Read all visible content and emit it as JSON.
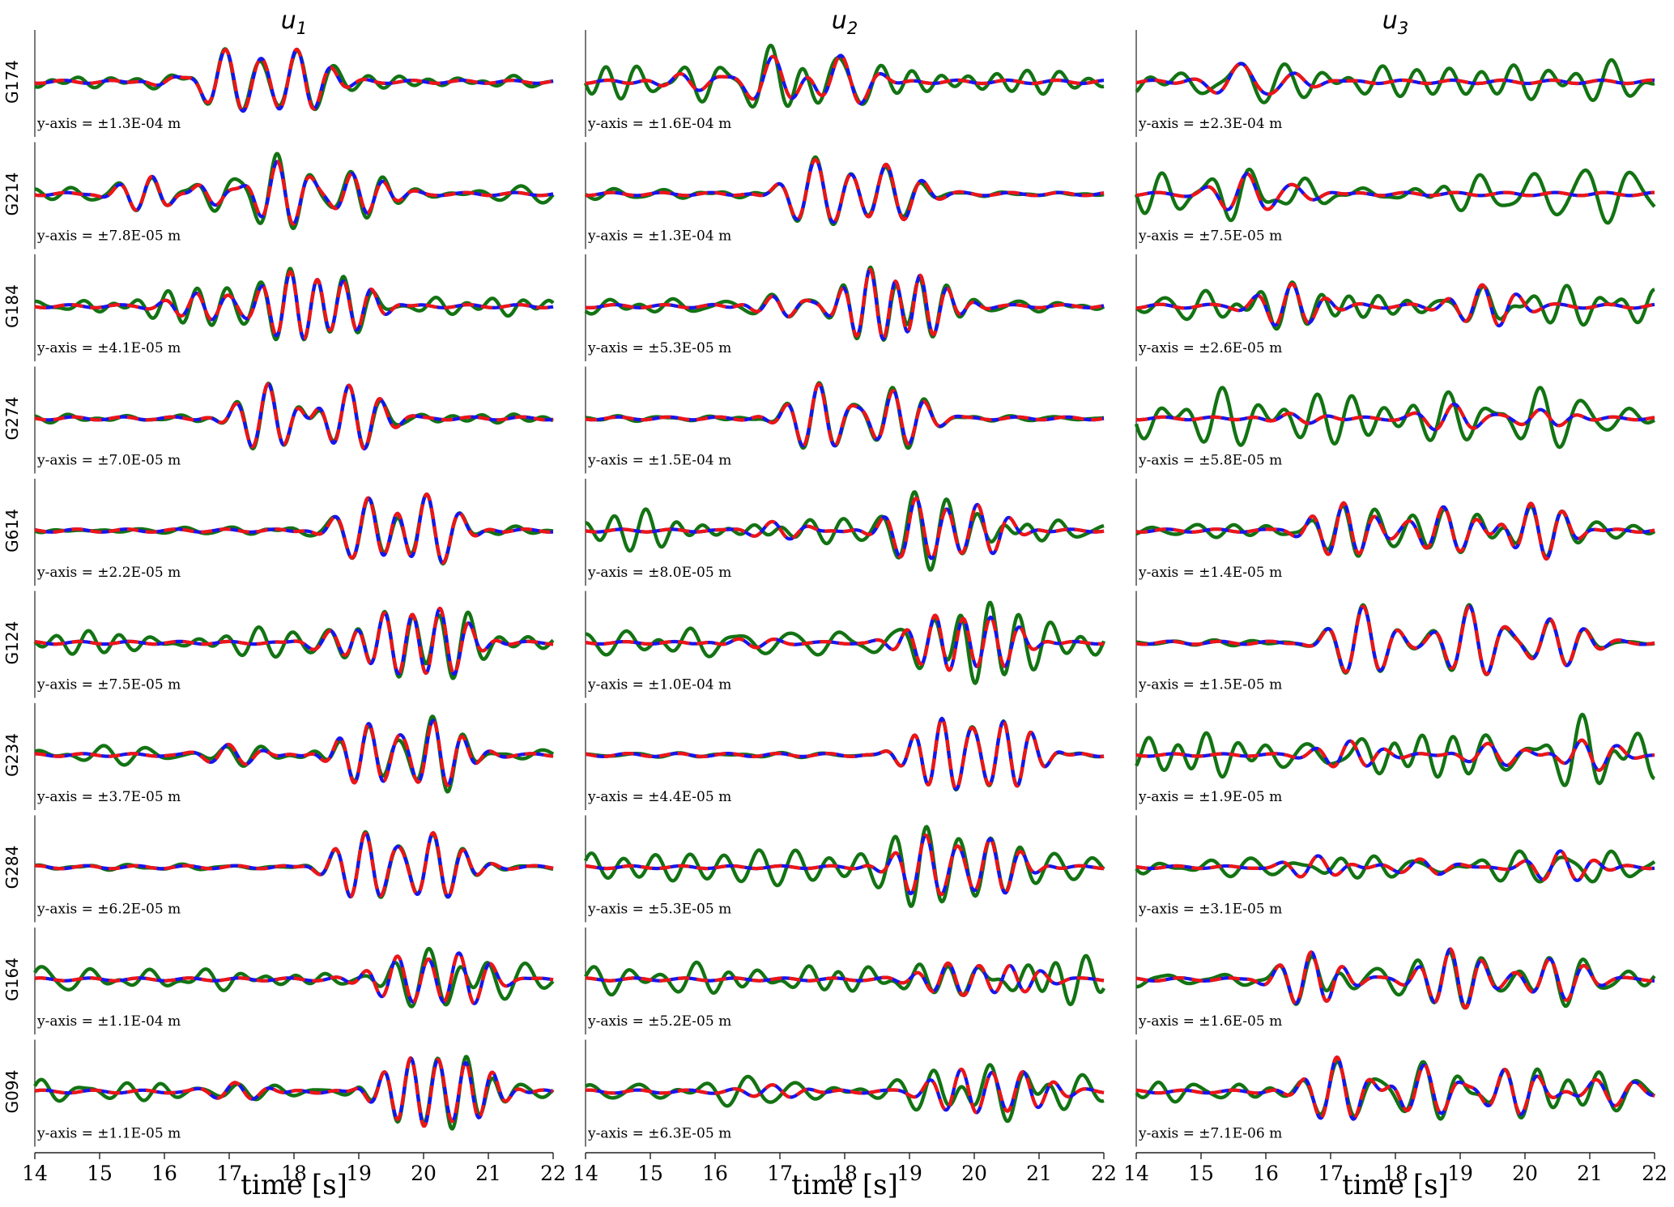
{
  "chart_data": {
    "type": "line",
    "columns": [
      {
        "title_base": "u",
        "title_sub": "1"
      },
      {
        "title_base": "u",
        "title_sub": "2"
      },
      {
        "title_base": "u",
        "title_sub": "3"
      }
    ],
    "stations": [
      "G174",
      "G214",
      "G184",
      "G274",
      "G614",
      "G124",
      "G234",
      "G284",
      "G164",
      "G094"
    ],
    "scale_labels": [
      [
        "y-axis = ±1.3E-04 m",
        "y-axis = ±1.6E-04 m",
        "y-axis = ±2.3E-04 m"
      ],
      [
        "y-axis = ±7.8E-05 m",
        "y-axis = ±1.3E-04 m",
        "y-axis = ±7.5E-05 m"
      ],
      [
        "y-axis = ±4.1E-05 m",
        "y-axis = ±5.3E-05 m",
        "y-axis = ±2.6E-05 m"
      ],
      [
        "y-axis = ±7.0E-05 m",
        "y-axis = ±1.5E-04 m",
        "y-axis = ±5.8E-05 m"
      ],
      [
        "y-axis = ±2.2E-05 m",
        "y-axis = ±8.0E-05 m",
        "y-axis = ±1.4E-05 m"
      ],
      [
        "y-axis = ±7.5E-05 m",
        "y-axis = ±1.0E-04 m",
        "y-axis = ±1.5E-05 m"
      ],
      [
        "y-axis = ±3.7E-05 m",
        "y-axis = ±4.4E-05 m",
        "y-axis = ±1.9E-05 m"
      ],
      [
        "y-axis = ±6.2E-05 m",
        "y-axis = ±5.3E-05 m",
        "y-axis = ±3.1E-05 m"
      ],
      [
        "y-axis = ±1.1E-04 m",
        "y-axis = ±5.2E-05 m",
        "y-axis = ±1.6E-05 m"
      ],
      [
        "y-axis = ±1.1E-05 m",
        "y-axis = ±6.3E-05 m",
        "y-axis = ±7.1E-06 m"
      ]
    ],
    "xlabel": "time [s]",
    "xlim": [
      14,
      22
    ],
    "xticks": [
      14,
      15,
      16,
      17,
      18,
      19,
      20,
      21,
      22
    ],
    "ylim": [
      -1,
      1
    ],
    "series_colors": {
      "observed": "#137313",
      "predicted_a": "#1515ee",
      "predicted_b": "#ee1515"
    },
    "series_style": {
      "predicted_b": "dashed"
    },
    "traces": {
      "0": {
        "u1": {
          "a": 0.8,
          "b": [
            [
              16.95,
              0.9,
              1.8
            ],
            [
              18.1,
              0.9,
              1.8
            ],
            [
              16.3,
              0.25,
              1.7
            ]
          ],
          "n": 0.25
        },
        "u2": {
          "a": 0.65,
          "b": [
            [
              16.9,
              0.65,
              1.5
            ],
            [
              18.0,
              0.7,
              1.5
            ],
            [
              15.6,
              0.25,
              1.6
            ]
          ],
          "n": 0.55
        },
        "u3": {
          "a": 0.45,
          "b": [
            [
              15.6,
              0.45,
              1.2
            ],
            [
              16.5,
              0.15,
              1.6
            ]
          ],
          "n": 0.7
        }
      },
      "1": {
        "u1": {
          "a": 0.8,
          "b": [
            [
              15.8,
              0.5,
              2.0
            ],
            [
              17.8,
              0.9,
              2.0
            ],
            [
              19.0,
              0.6,
              2.0
            ],
            [
              16.7,
              0.4,
              1.8
            ]
          ],
          "n": 0.35
        },
        "u2": {
          "a": 0.85,
          "b": [
            [
              17.55,
              0.9,
              1.7
            ],
            [
              18.7,
              0.85,
              1.7
            ]
          ],
          "n": 0.15
        },
        "u3": {
          "a": 0.5,
          "b": [
            [
              15.7,
              0.5,
              1.6
            ],
            [
              16.5,
              0.2,
              1.6
            ]
          ],
          "n": 1.0
        }
      },
      "2": {
        "u1": {
          "a": 0.85,
          "b": [
            [
              17.95,
              0.95,
              2.2
            ],
            [
              18.8,
              0.7,
              2.2
            ],
            [
              16.6,
              0.4,
              2.0
            ]
          ],
          "n": 0.35
        },
        "u2": {
          "a": 0.9,
          "b": [
            [
              18.4,
              0.95,
              2.3
            ],
            [
              19.2,
              0.8,
              2.3
            ],
            [
              17.0,
              0.25,
              2.0
            ]
          ],
          "n": 0.25
        },
        "u3": {
          "a": 0.55,
          "b": [
            [
              16.4,
              0.5,
              1.8
            ],
            [
              19.4,
              0.5,
              1.8
            ]
          ],
          "n": 0.65
        }
      },
      "3": {
        "u1": {
          "a": 0.85,
          "b": [
            [
              17.6,
              0.9,
              2.0
            ],
            [
              18.9,
              0.95,
              2.0
            ]
          ],
          "n": 0.15
        },
        "u2": {
          "a": 0.85,
          "b": [
            [
              17.6,
              0.95,
              2.0
            ],
            [
              18.8,
              0.85,
              2.0
            ]
          ],
          "n": 0.15
        },
        "u3": {
          "a": 0.35,
          "b": [
            [
              18.9,
              0.4,
              1.6
            ],
            [
              20.3,
              0.3,
              1.6
            ],
            [
              16.5,
              0.2,
              1.5
            ]
          ],
          "n": 1.0
        }
      },
      "4": {
        "u1": {
          "a": 0.9,
          "b": [
            [
              19.15,
              0.9,
              1.9
            ],
            [
              20.1,
              1.0,
              1.9
            ]
          ],
          "n": 0.15
        },
        "u2": {
          "a": 0.8,
          "b": [
            [
              19.1,
              0.95,
              2.0
            ],
            [
              20.1,
              0.75,
              2.0
            ],
            [
              17.0,
              0.25,
              1.8
            ]
          ],
          "n": 0.75
        },
        "u3": {
          "a": 0.7,
          "b": [
            [
              17.2,
              0.8,
              2.0
            ],
            [
              18.8,
              0.7,
              1.8
            ],
            [
              20.2,
              0.8,
              2.0
            ]
          ],
          "n": 0.35
        }
      },
      "5": {
        "u1": {
          "a": 0.85,
          "b": [
            [
              19.4,
              0.9,
              2.2
            ],
            [
              20.3,
              1.0,
              2.2
            ],
            [
              18.7,
              0.3,
              1.8
            ]
          ],
          "n": 0.55
        },
        "u2": {
          "a": 0.75,
          "b": [
            [
              19.4,
              0.9,
              2.2
            ],
            [
              20.3,
              0.85,
              2.2
            ],
            [
              16.5,
              0.15,
              1.8
            ]
          ],
          "n": 0.8
        },
        "u3": {
          "a": 0.9,
          "b": [
            [
              17.5,
              0.95,
              1.8
            ],
            [
              19.2,
              0.95,
              1.8
            ],
            [
              20.5,
              0.7,
              1.8
            ]
          ],
          "n": 0.1
        }
      },
      "6": {
        "u1": {
          "a": 0.85,
          "b": [
            [
              19.15,
              0.95,
              2.2
            ],
            [
              20.2,
              1.0,
              2.2
            ],
            [
              17.1,
              0.3,
              1.8
            ]
          ],
          "n": 0.35
        },
        "u2": {
          "a": 0.9,
          "b": [
            [
              19.5,
              0.95,
              2.3
            ],
            [
              20.5,
              0.9,
              2.3
            ]
          ],
          "n": 0.05
        },
        "u3": {
          "a": 0.4,
          "b": [
            [
              17.3,
              0.5,
              1.8
            ],
            [
              19.5,
              0.4,
              1.6
            ],
            [
              21.0,
              0.5,
              1.8
            ]
          ],
          "n": 0.9
        }
      },
      "7": {
        "u1": {
          "a": 0.85,
          "b": [
            [
              19.1,
              0.95,
              2.1
            ],
            [
              20.2,
              0.9,
              2.1
            ]
          ],
          "n": 0.08
        },
        "u2": {
          "a": 0.8,
          "b": [
            [
              19.25,
              0.95,
              2.1
            ],
            [
              20.3,
              0.85,
              2.1
            ]
          ],
          "n": 0.65
        },
        "u3": {
          "a": 0.4,
          "b": [
            [
              16.8,
              0.35,
              1.8
            ],
            [
              20.6,
              0.55,
              1.8
            ],
            [
              18.5,
              0.25,
              1.6
            ]
          ],
          "n": 0.7
        }
      },
      "8": {
        "u1": {
          "a": 0.65,
          "b": [
            [
              19.6,
              0.65,
              2.0
            ],
            [
              20.6,
              0.8,
              2.0
            ]
          ],
          "n": 0.6
        },
        "u2": {
          "a": 0.4,
          "b": [
            [
              19.6,
              0.5,
              2.0
            ],
            [
              20.6,
              0.45,
              2.0
            ]
          ],
          "n": 0.85
        },
        "u3": {
          "a": 0.75,
          "b": [
            [
              16.7,
              0.75,
              2.0
            ],
            [
              18.9,
              0.85,
              2.0
            ],
            [
              20.5,
              0.6,
              1.8
            ]
          ],
          "n": 0.4
        }
      },
      "9": {
        "u1": {
          "a": 0.85,
          "b": [
            [
              19.8,
              0.95,
              2.4
            ],
            [
              20.7,
              0.8,
              2.4
            ],
            [
              17.2,
              0.25,
              1.8
            ]
          ],
          "n": 0.35
        },
        "u2": {
          "a": 0.55,
          "b": [
            [
              19.8,
              0.6,
              2.0
            ],
            [
              20.8,
              0.5,
              2.0
            ],
            [
              17.0,
              0.2,
              1.6
            ]
          ],
          "n": 0.6
        },
        "u3": {
          "a": 0.85,
          "b": [
            [
              17.1,
              0.95,
              1.9
            ],
            [
              18.5,
              0.75,
              1.8
            ],
            [
              19.8,
              0.7,
              1.9
            ],
            [
              21.3,
              0.4,
              1.6
            ]
          ],
          "n": 0.4
        }
      }
    }
  }
}
